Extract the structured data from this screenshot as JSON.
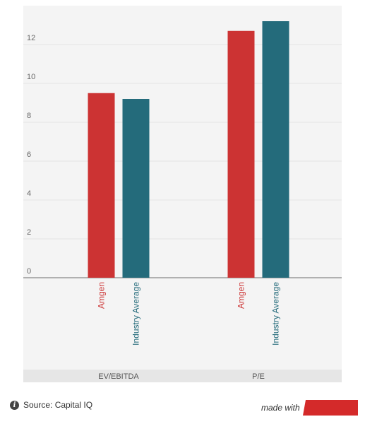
{
  "chart_data": {
    "type": "bar",
    "groups": [
      "EV/EBITDA",
      "P/E"
    ],
    "series": [
      {
        "name": "Amgen",
        "color": "#cc3333",
        "values": [
          9.5,
          12.7
        ]
      },
      {
        "name": "Industry Average",
        "color": "#246b7b",
        "values": [
          9.2,
          13.2
        ]
      }
    ],
    "yticks": [
      0,
      2,
      4,
      6,
      8,
      10,
      12
    ],
    "ylim": [
      0,
      14
    ],
    "grid": true
  },
  "footer": {
    "source": "Source: Capital IQ",
    "made_with": "made with",
    "info_icon": "info-icon"
  },
  "colors": {
    "grid_bg": "#f4f4f4",
    "grid_line": "#e4e4e4",
    "axis": "#999999",
    "flag": "#d42a2a"
  }
}
